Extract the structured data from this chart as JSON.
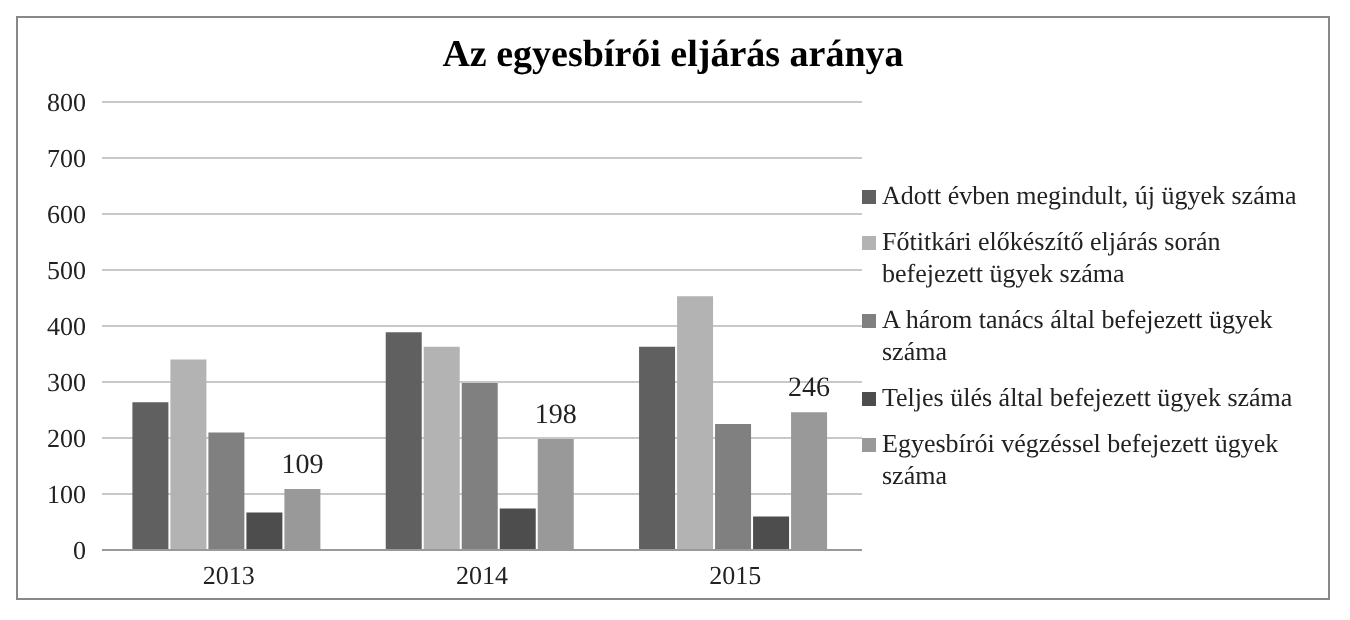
{
  "chart_data": {
    "type": "bar",
    "title": "Az egyesbírói eljárás aránya",
    "categories": [
      "2013",
      "2014",
      "2015"
    ],
    "series": [
      {
        "name": "Adott évben megindult, új ügyek száma",
        "color": "#606060",
        "values": [
          264,
          389,
          363
        ]
      },
      {
        "name": "Főtitkári előkészítő eljárás során befejezett ügyek száma",
        "color": "#b3b3b3",
        "values": [
          340,
          363,
          453
        ]
      },
      {
        "name": "A három tanács által befejezett ügyek száma",
        "color": "#808080",
        "values": [
          210,
          298,
          225
        ]
      },
      {
        "name": "Teljes ülés által befejezett ügyek száma",
        "color": "#4d4d4d",
        "values": [
          67,
          74,
          60
        ]
      },
      {
        "name": "Egyesbírói végzéssel befejezett ügyek száma",
        "color": "#999999",
        "values": [
          109,
          198,
          246
        ],
        "value_labels": [
          "109",
          "198",
          "246"
        ]
      }
    ],
    "ylim": [
      0,
      800
    ],
    "yticks": [
      0,
      100,
      200,
      300,
      400,
      500,
      600,
      700,
      800
    ],
    "grid": "y",
    "legend": "right"
  }
}
